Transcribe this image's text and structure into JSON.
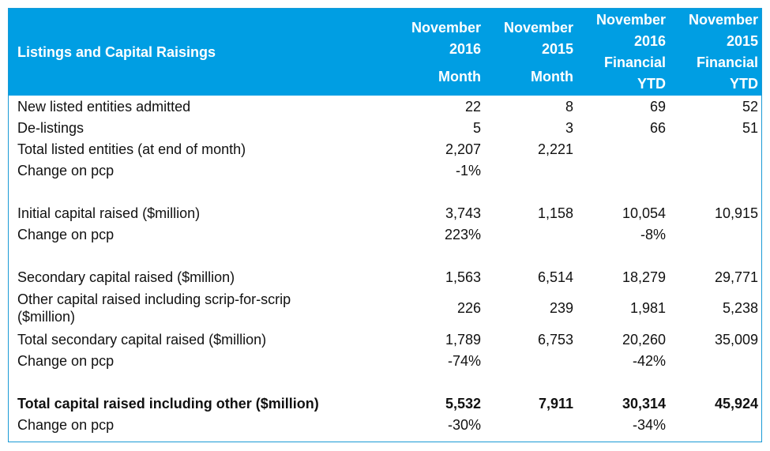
{
  "header": {
    "title": "Listings and Capital Raisings",
    "columns": [
      {
        "lines": [
          "November",
          "2016"
        ],
        "sub": [
          "Month"
        ]
      },
      {
        "lines": [
          "November",
          "2015"
        ],
        "sub": [
          "Month"
        ]
      },
      {
        "lines": [
          "November",
          "2016"
        ],
        "sub": [
          "Financial",
          "YTD"
        ]
      },
      {
        "lines": [
          "November",
          "2015"
        ],
        "sub": [
          "Financial",
          "YTD"
        ]
      }
    ]
  },
  "rows": [
    {
      "label": "New listed entities admitted",
      "values": [
        "22",
        "8",
        "69",
        "52"
      ]
    },
    {
      "label": "De-listings",
      "values": [
        "5",
        "3",
        "66",
        "51"
      ]
    },
    {
      "label": "Total listed entities (at end of month)",
      "values": [
        "2,207",
        "2,221",
        "",
        ""
      ]
    },
    {
      "label": "Change on pcp",
      "values": [
        "-1%",
        "",
        "",
        ""
      ]
    },
    {
      "label": "Initial capital raised ($million)",
      "values": [
        "3,743",
        "1,158",
        "10,054",
        "10,915"
      ]
    },
    {
      "label": "Change on pcp",
      "values": [
        "223%",
        "",
        "-8%",
        ""
      ]
    },
    {
      "label": "Secondary capital raised ($million)",
      "values": [
        "1,563",
        "6,514",
        "18,279",
        "29,771"
      ]
    },
    {
      "label": "Other capital raised including scrip-for-scrip ($million)",
      "label_lines": [
        "Other capital raised including scrip-for-scrip",
        "($million)"
      ],
      "values": [
        "226",
        "239",
        "1,981",
        "5,238"
      ]
    },
    {
      "label": "Total secondary capital raised ($million)",
      "values": [
        "1,789",
        "6,753",
        "20,260",
        "35,009"
      ]
    },
    {
      "label": "Change on pcp",
      "values": [
        "-74%",
        "",
        "-42%",
        ""
      ]
    },
    {
      "label": "Total capital raised including other ($million)",
      "values": [
        "5,532",
        "7,911",
        "30,314",
        "45,924"
      ]
    },
    {
      "label": "Change on pcp",
      "values": [
        "-30%",
        "",
        "-34%",
        ""
      ]
    }
  ],
  "colors": {
    "header_bg": "#009ee3",
    "header_text": "#ffffff",
    "border": "#1a9ad6"
  }
}
